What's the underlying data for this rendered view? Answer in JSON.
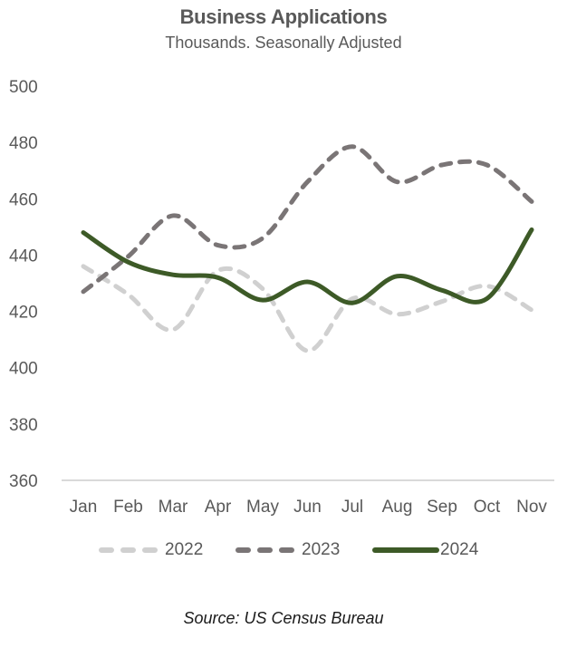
{
  "chart_data": {
    "type": "line",
    "title": "Business Applications",
    "subtitle": "Thousands. Seasonally Adjusted",
    "xlabel": "",
    "ylabel": "",
    "categories": [
      "Jan",
      "Feb",
      "Mar",
      "Apr",
      "May",
      "Jun",
      "Jul",
      "Aug",
      "Sep",
      "Oct",
      "Nov"
    ],
    "ylim": [
      360,
      500
    ],
    "yticks": [
      360,
      380,
      400,
      420,
      440,
      460,
      480,
      500
    ],
    "grid": false,
    "smooth": true,
    "legend_position": "bottom",
    "series": [
      {
        "name": "2022",
        "style": "dashed",
        "color": "#d0d0d0",
        "values": [
          436,
          426,
          413.5,
          434.5,
          428,
          406,
          424.5,
          419,
          423.5,
          429,
          420.5
        ]
      },
      {
        "name": "2023",
        "style": "dashed",
        "color": "#7a7576",
        "values": [
          427,
          439.5,
          454,
          443.5,
          446,
          466,
          478.5,
          466,
          472,
          472,
          459
        ]
      },
      {
        "name": "2024",
        "style": "solid",
        "color": "#3d5a27",
        "values": [
          448,
          437.5,
          433,
          432,
          424,
          430.5,
          423,
          432.5,
          427.5,
          424.5,
          449
        ]
      }
    ],
    "source": "Source: US Census Bureau"
  },
  "axis_color": "#d9d9d9"
}
